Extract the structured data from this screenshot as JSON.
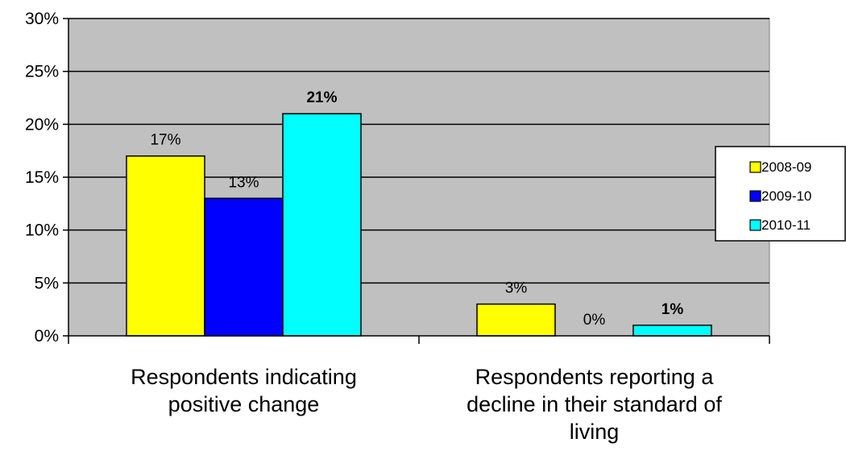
{
  "chart_data": {
    "type": "bar",
    "categories": [
      [
        "Respondents indicating",
        "positive change"
      ],
      [
        "Respondents reporting a",
        "decline in their standard of",
        "living"
      ]
    ],
    "series": [
      {
        "name": "2008-09",
        "values": [
          17,
          3
        ],
        "labels": [
          "17%",
          "3%"
        ],
        "bold": false,
        "color": "#ffff00"
      },
      {
        "name": "2009-10",
        "values": [
          13,
          0
        ],
        "labels": [
          "13%",
          "0%"
        ],
        "bold": false,
        "color": "#0000ff"
      },
      {
        "name": "2010-11",
        "values": [
          21,
          1
        ],
        "labels": [
          "21%",
          "1%"
        ],
        "bold": true,
        "color": "#00ffff"
      }
    ],
    "y_ticks": [
      "0%",
      "5%",
      "10%",
      "15%",
      "20%",
      "25%",
      "30%"
    ],
    "ylim": [
      0,
      30
    ],
    "grid": true,
    "plot_background": "#c0c0c0",
    "legend_position": "right",
    "title": "",
    "xlabel": "",
    "ylabel": ""
  }
}
